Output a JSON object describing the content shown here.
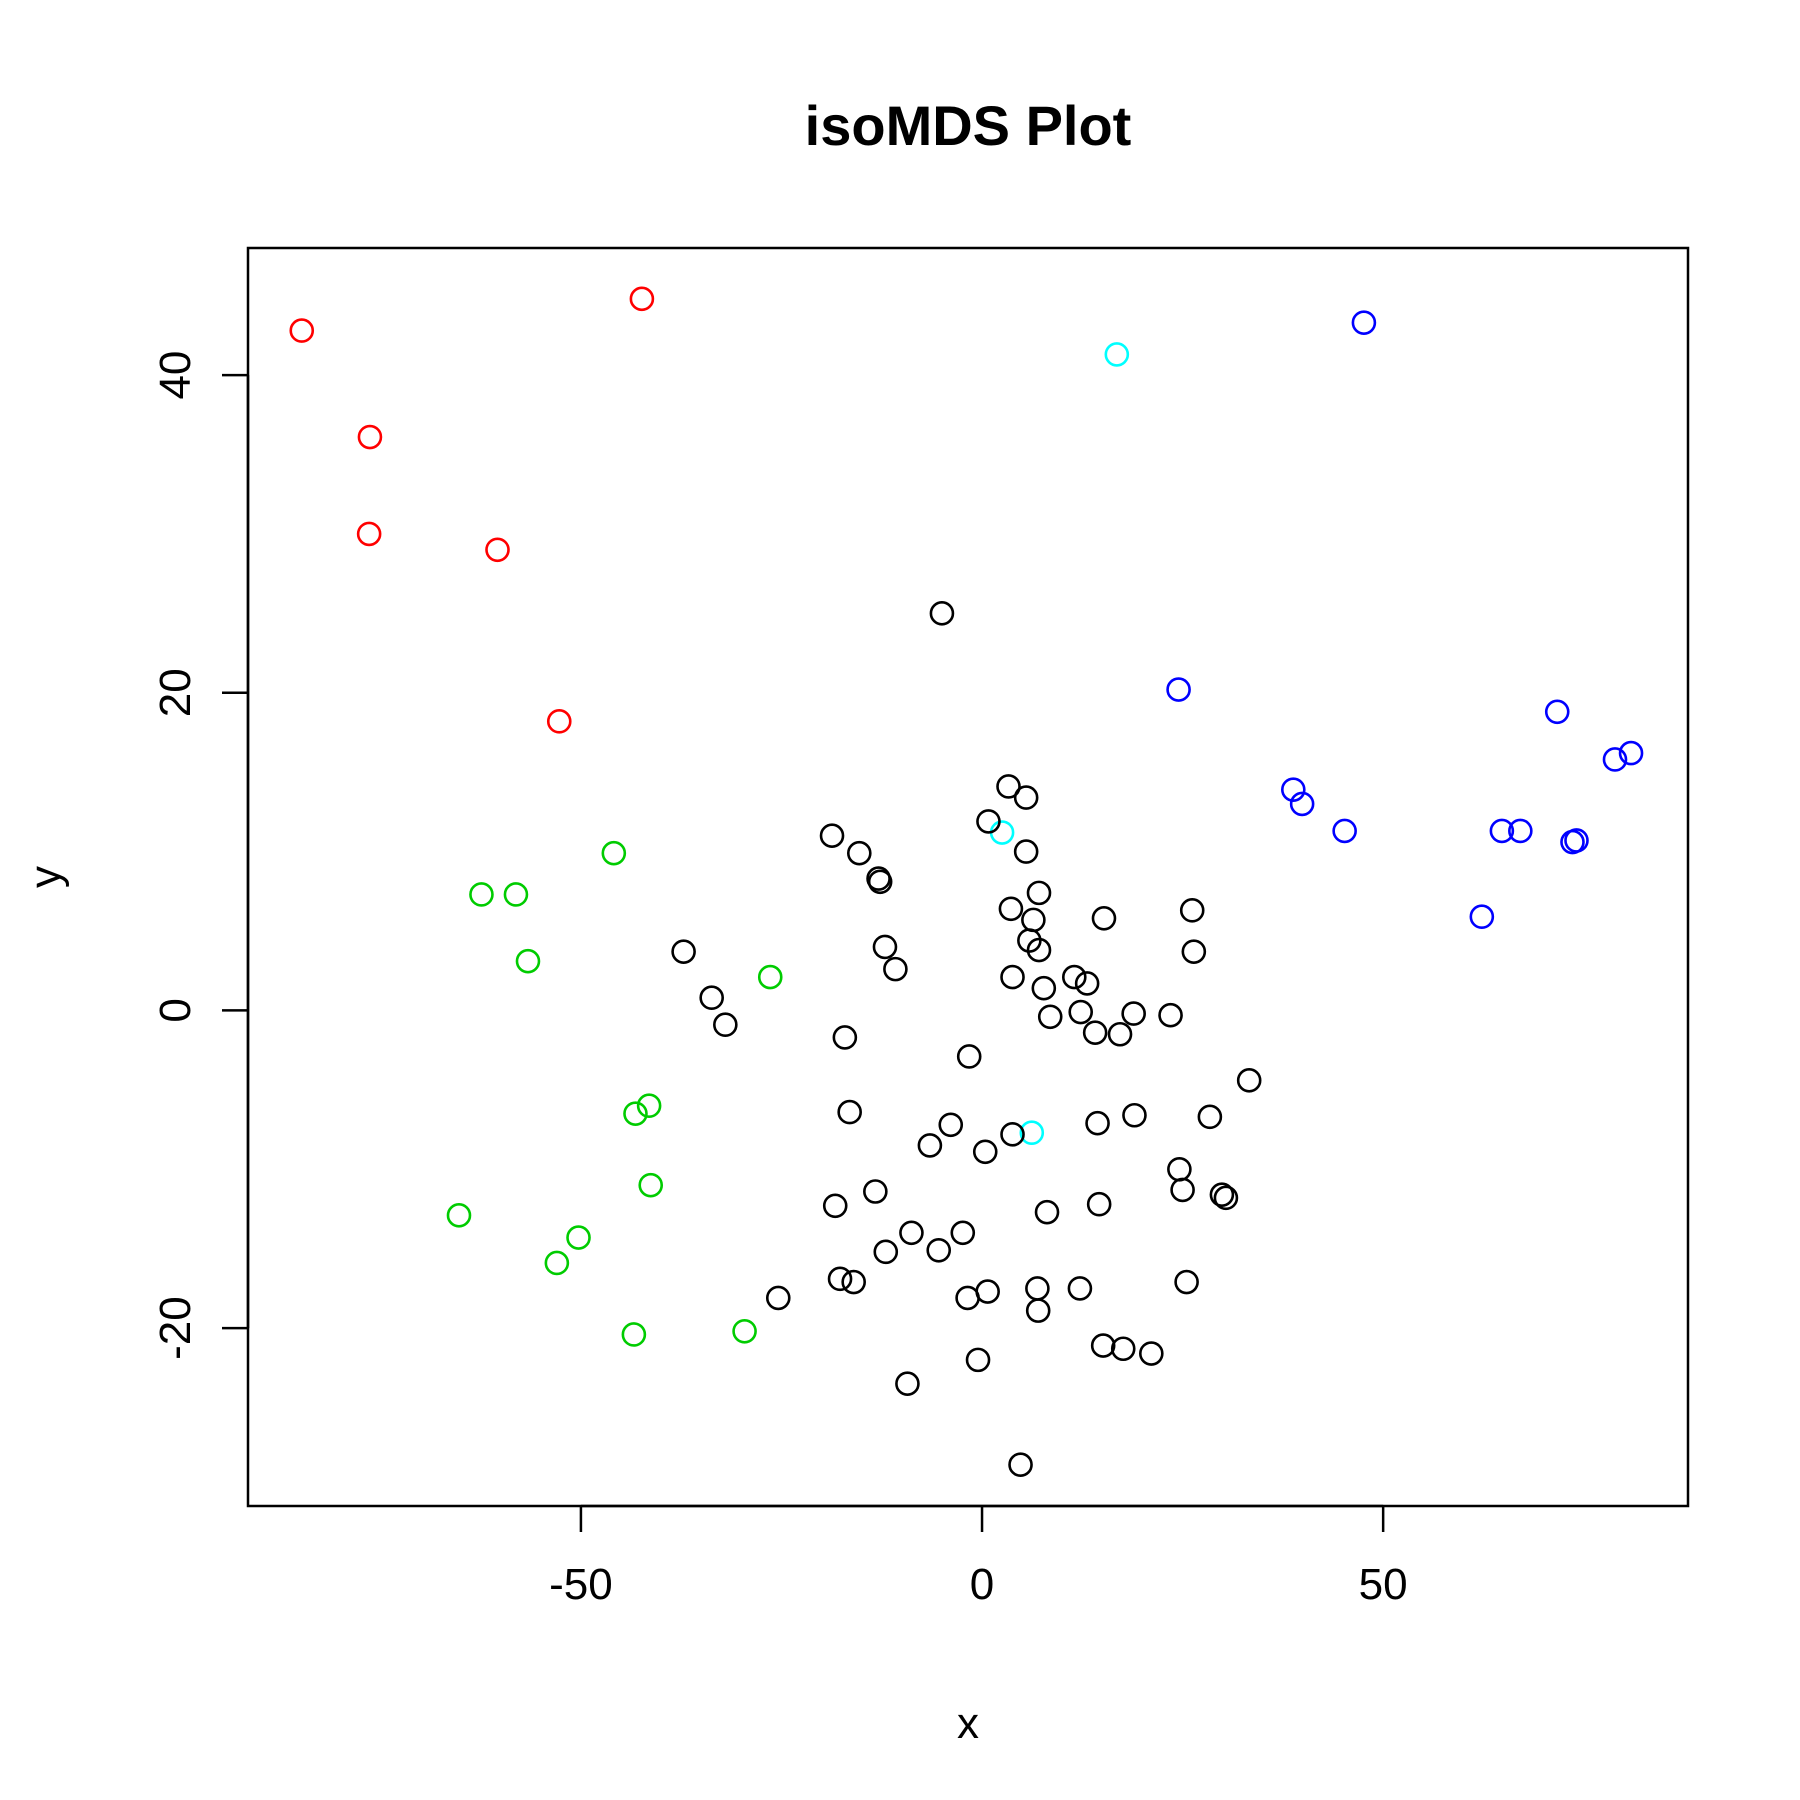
{
  "chart_data": {
    "type": "scatter",
    "title": "isoMDS Plot",
    "xlabel": "x",
    "ylabel": "y",
    "xlim": [
      -91.5,
      88
    ],
    "ylim": [
      -31.2,
      48
    ],
    "xticks": [
      -50,
      0,
      50
    ],
    "yticks": [
      -20,
      0,
      20,
      40
    ],
    "grid": false,
    "colors": {
      "red": "#ff0000",
      "green": "#00cc00",
      "blue": "#0000ff",
      "cyan": "#00ffff",
      "black": "#000000"
    },
    "series": [
      {
        "color": "#ff0000",
        "x": [
          -84.8,
          -76.3,
          -76.4,
          -60.4,
          -52.7,
          -42.4
        ],
        "y": [
          42.8,
          36.1,
          30.0,
          29.0,
          18.2,
          44.8
        ]
      },
      {
        "color": "#00cc00",
        "x": [
          -45.9,
          -62.4,
          -58.1,
          -56.6,
          -26.4,
          -43.2,
          -41.5,
          -41.3,
          -65.2,
          -50.3,
          -53.0,
          -43.4,
          -29.6
        ],
        "y": [
          9.9,
          7.3,
          7.3,
          3.1,
          2.1,
          -6.5,
          -6.0,
          -11.0,
          -12.9,
          -14.3,
          -15.9,
          -20.4,
          -20.2
        ]
      },
      {
        "color": "#0000ff",
        "x": [
          47.6,
          24.5,
          38.8,
          39.9,
          45.2,
          71.7,
          78.9,
          80.9,
          64.8,
          67.1,
          73.6,
          74.1,
          62.3
        ],
        "y": [
          43.3,
          20.2,
          13.9,
          13.0,
          11.3,
          18.8,
          15.8,
          16.2,
          11.3,
          11.3,
          10.6,
          10.7,
          5.9
        ]
      },
      {
        "color": "#00ffff",
        "x": [
          16.8,
          2.5,
          6.2
        ],
        "y": [
          41.3,
          11.2,
          -7.7
        ]
      },
      {
        "color": "#000000",
        "x": [
          -5.0,
          3.3,
          5.5,
          0.8,
          5.5,
          -18.7,
          -15.3,
          -12.9,
          -12.7,
          7.1,
          3.6,
          6.4,
          5.9,
          7.1,
          3.8,
          7.7,
          -37.2,
          -33.7,
          -32.0,
          -12.1,
          -10.8,
          11.5,
          13.1,
          12.3,
          14.1,
          17.2,
          18.9,
          15.2,
          23.5,
          26.2,
          26.4,
          8.5,
          -17.1,
          -1.6,
          33.3,
          -16.5,
          -3.9,
          -6.5,
          0.4,
          3.8,
          14.4,
          19.0,
          28.4,
          24.6,
          25.0,
          29.9,
          30.4,
          -13.3,
          -18.3,
          8.1,
          14.6,
          -8.8,
          -2.4,
          -5.4,
          -12.0,
          -17.7,
          -16.0,
          -1.8,
          0.7,
          6.9,
          7.0,
          12.2,
          25.5,
          -25.4,
          15.1,
          17.6,
          21.1,
          -0.5,
          -9.3,
          4.8
        ],
        "y": [
          25.0,
          14.1,
          13.4,
          11.9,
          10.0,
          11.0,
          9.9,
          8.3,
          8.1,
          7.4,
          6.4,
          5.7,
          4.4,
          3.8,
          2.1,
          1.4,
          3.7,
          0.8,
          -0.9,
          4.0,
          2.6,
          2.1,
          1.7,
          -0.1,
          -1.4,
          -1.5,
          -0.2,
          5.8,
          -0.3,
          6.3,
          3.7,
          -0.4,
          -1.7,
          -2.9,
          -4.4,
          -6.4,
          -7.2,
          -8.5,
          -8.9,
          -7.8,
          -7.1,
          -6.6,
          -6.7,
          -10.0,
          -11.3,
          -11.6,
          -11.8,
          -11.4,
          -12.3,
          -12.7,
          -12.2,
          -14.0,
          -14.0,
          -15.1,
          -15.2,
          -16.9,
          -17.1,
          -18.1,
          -17.7,
          -17.5,
          -18.9,
          -17.5,
          -17.1,
          -18.1,
          -21.1,
          -21.3,
          -21.6,
          -22.0,
          -23.5,
          -28.6
        ]
      }
    ]
  }
}
